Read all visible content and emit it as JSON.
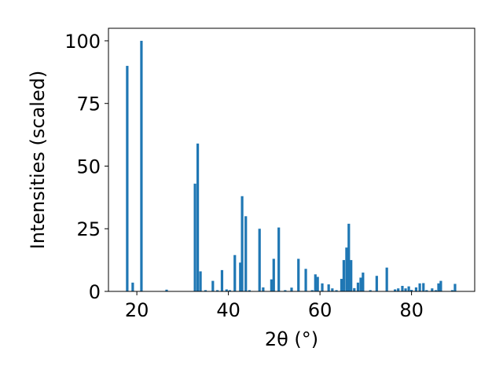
{
  "chart_data": {
    "type": "bar",
    "xlabel": "2θ (°)",
    "ylabel": "Intensities (scaled)",
    "xlim": [
      13.8,
      93.8
    ],
    "ylim": [
      0,
      105
    ],
    "grid": false,
    "legend": "none",
    "bar_color": "#1f77b4",
    "bar_width": 0.55,
    "xticks": [
      20,
      40,
      60,
      80
    ],
    "yticks": [
      0,
      25,
      50,
      75,
      100
    ],
    "xtick_labels": [
      "20",
      "40",
      "60",
      "80"
    ],
    "ytick_labels": [
      "0",
      "25",
      "50",
      "75",
      "100"
    ],
    "series": [
      {
        "x": [
          17.9,
          19.1,
          21.0,
          26.5,
          32.7,
          33.3,
          33.9,
          35.0,
          36.6,
          37.6,
          38.6,
          39.6,
          40.3,
          41.4,
          42.6,
          43.0,
          43.8,
          44.6,
          46.8,
          47.6,
          49.4,
          49.9,
          51.0,
          52.4,
          53.8,
          55.3,
          56.9,
          58.3,
          59.0,
          59.5,
          60.5,
          61.9,
          62.7,
          63.6,
          64.7,
          65.2,
          65.8,
          66.3,
          66.8,
          67.5,
          68.3,
          68.9,
          69.4,
          71.0,
          72.4,
          74.6,
          76.4,
          77.1,
          78.0,
          78.7,
          79.4,
          80.0,
          81.0,
          81.8,
          82.6,
          83.3,
          84.5,
          85.3,
          85.9,
          86.4,
          88.9,
          89.5
        ],
        "y": [
          90,
          3.5,
          100,
          0.7,
          43,
          59,
          8,
          0.5,
          4.2,
          0.5,
          8.5,
          0.8,
          0.5,
          14.5,
          11.5,
          38,
          30,
          0.5,
          25,
          1.6,
          4.8,
          13,
          25.5,
          0.5,
          1.5,
          13,
          9,
          0.5,
          6.8,
          5.8,
          3.2,
          2.8,
          1.2,
          0.5,
          5,
          12.5,
          17.5,
          27,
          12.5,
          1.3,
          3.5,
          5.5,
          7.5,
          0.5,
          6.2,
          9.5,
          0.8,
          1.2,
          2.2,
          1.2,
          2,
          0.6,
          1.6,
          3.2,
          3.3,
          0.5,
          1.2,
          0.5,
          3.2,
          4.2,
          0.5,
          3
        ]
      }
    ]
  }
}
